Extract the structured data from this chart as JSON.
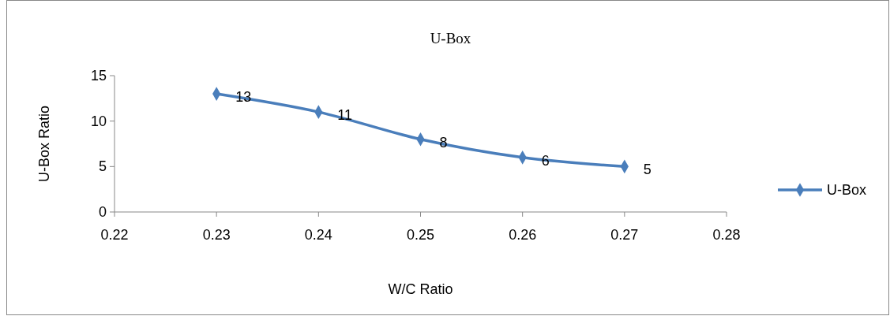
{
  "chart_data": {
    "type": "line",
    "title": "U-Box",
    "xlabel": "W/C Ratio",
    "ylabel": "U-Box Ratio",
    "x": [
      0.23,
      0.24,
      0.25,
      0.26,
      0.27
    ],
    "series": [
      {
        "name": "U-Box",
        "color": "#4a7ebb",
        "values": [
          13,
          11,
          8,
          6,
          5
        ]
      }
    ],
    "xlim": [
      0.22,
      0.28
    ],
    "xticks": [
      0.22,
      0.23,
      0.24,
      0.25,
      0.26,
      0.27,
      0.28
    ],
    "ylim": [
      0,
      15
    ],
    "yticks": [
      0,
      5,
      10,
      15
    ],
    "grid": false,
    "legend": "right",
    "marker": "diamond",
    "line_style": "solid",
    "data_labels": true
  }
}
